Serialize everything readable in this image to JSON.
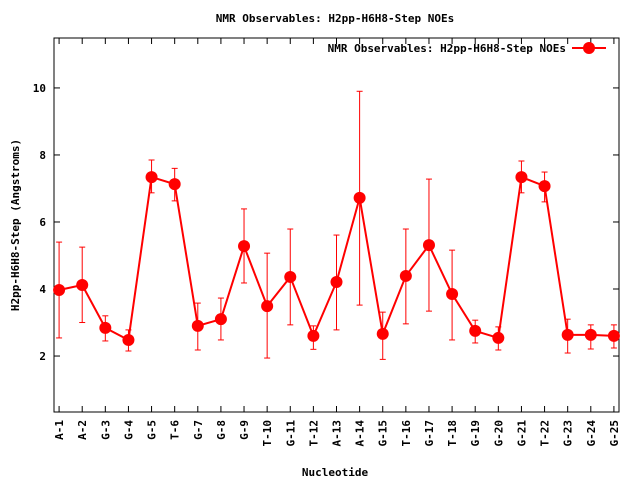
{
  "chart_data": {
    "type": "line",
    "title": "NMR Observables: H2pp-H6H8-Step NOEs",
    "xlabel": "Nucleotide",
    "ylabel": "H2pp-H6H8-Step (Angstroms)",
    "ylim": [
      0.33,
      11.49
    ],
    "xlim": [
      0.78,
      25.22
    ],
    "yticks": [
      2,
      4,
      6,
      8,
      10
    ],
    "grid": false,
    "legend": {
      "position": "top-right",
      "entries": [
        "NMR Observables: H2pp-H6H8-Step NOEs"
      ]
    },
    "series_color": "#ff0000",
    "categories": [
      "A-1",
      "A-2",
      "G-3",
      "G-4",
      "G-5",
      "T-6",
      "G-7",
      "G-8",
      "G-9",
      "T-10",
      "G-11",
      "T-12",
      "A-13",
      "A-14",
      "G-15",
      "T-16",
      "G-17",
      "T-18",
      "G-19",
      "G-20",
      "G-21",
      "T-22",
      "G-23",
      "G-24",
      "G-25"
    ],
    "series": [
      {
        "name": "NMR Observables: H2pp-H6H8-Step NOEs",
        "values": [
          3.97,
          4.12,
          2.84,
          2.48,
          7.34,
          7.13,
          2.9,
          3.1,
          5.28,
          3.49,
          4.36,
          2.6,
          4.21,
          6.72,
          2.66,
          4.39,
          5.31,
          3.85,
          2.75,
          2.54,
          7.34,
          7.07,
          2.63,
          2.63,
          2.6
        ],
        "err_high": [
          5.4,
          5.25,
          3.2,
          2.78,
          7.85,
          7.6,
          3.58,
          3.73,
          6.39,
          5.07,
          5.79,
          2.9,
          5.61,
          9.9,
          3.31,
          5.79,
          7.28,
          5.16,
          3.07,
          2.87,
          7.82,
          7.49,
          3.1,
          2.93,
          2.93
        ],
        "err_low": [
          2.54,
          3.0,
          2.45,
          2.15,
          6.87,
          6.63,
          2.18,
          2.48,
          4.18,
          1.94,
          2.93,
          2.2,
          2.78,
          3.52,
          1.9,
          2.96,
          3.34,
          2.48,
          2.39,
          2.18,
          6.87,
          6.6,
          2.09,
          2.21,
          2.24
        ]
      }
    ]
  }
}
